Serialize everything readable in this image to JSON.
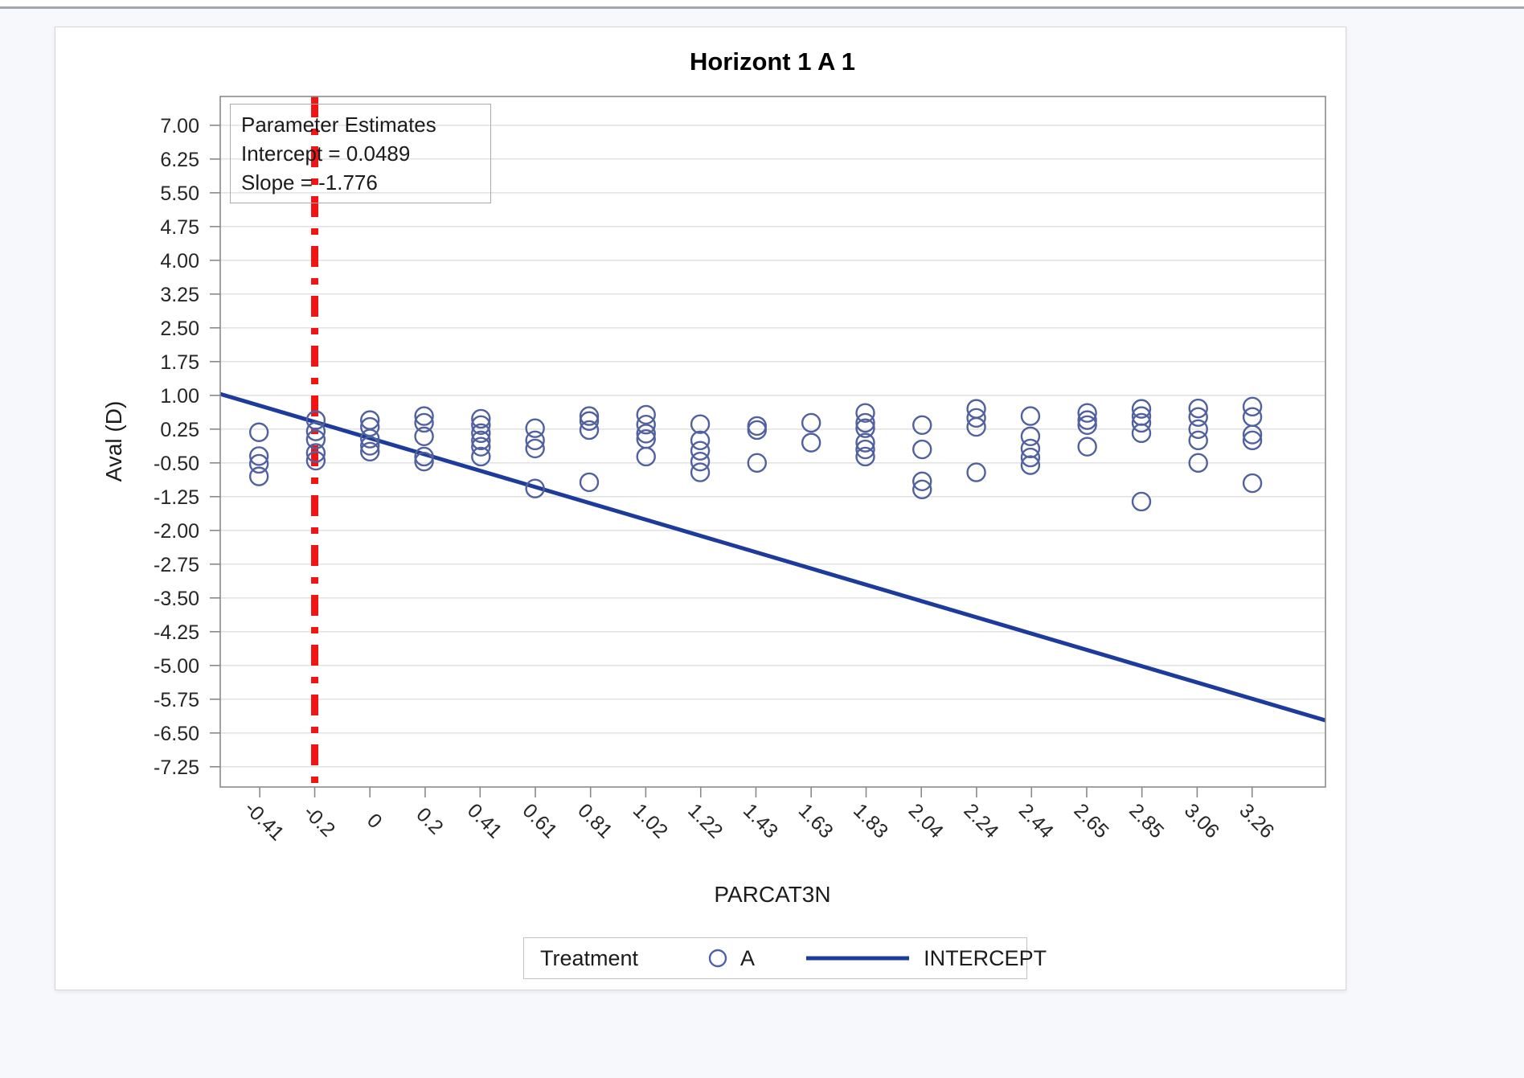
{
  "page": {
    "background": "#f6f8fc",
    "panel_background": "#ffffff"
  },
  "chart_data": {
    "type": "scatter",
    "title": "Horizont 1 A 1",
    "xlabel": "PARCAT3N",
    "ylabel": "Aval (D)",
    "grid": "horizontal",
    "xlim": [
      -0.553,
      3.53
    ],
    "ylim": [
      -7.7,
      7.64
    ],
    "x_ticks": {
      "labels": [
        "-0.41",
        "-0.2",
        "0",
        "0.2",
        "0.41",
        "0.61",
        "0.81",
        "1.02",
        "1.22",
        "1.43",
        "1.63",
        "1.83",
        "2.04",
        "2.24",
        "2.44",
        "2.65",
        "2.85",
        "3.06",
        "3.26"
      ],
      "values": [
        -0.407,
        -0.204,
        0,
        0.204,
        0.407,
        0.611,
        0.815,
        1.019,
        1.222,
        1.426,
        1.63,
        1.833,
        2.037,
        2.241,
        2.444,
        2.648,
        2.852,
        3.056,
        3.259
      ]
    },
    "y_ticks": {
      "labels": [
        "7.00",
        "6.25",
        "5.50",
        "4.75",
        "4.00",
        "3.25",
        "2.50",
        "1.75",
        "1.00",
        "0.25",
        "-0.50",
        "-1.25",
        "-2.00",
        "-2.75",
        "-3.50",
        "-4.25",
        "-5.00",
        "-5.75",
        "-6.50",
        "-7.25"
      ]
    },
    "inset": {
      "lines": [
        "Parameter Estimates",
        "Intercept = 0.0489",
        "Slope = -1.776"
      ]
    },
    "parameters": {
      "intercept": 0.0489,
      "slope": -1.776
    },
    "reference_line": {
      "x": -0.204,
      "color": "#f01414",
      "style": "dash-dot"
    },
    "regression": {
      "name": "INTERCEPT",
      "color": "#1d3b9b"
    },
    "series": [
      {
        "name": "A",
        "marker": "circle",
        "color": "#51609f",
        "points": [
          [
            -0.41,
            0.18
          ],
          [
            -0.41,
            -0.35
          ],
          [
            -0.41,
            -0.52
          ],
          [
            -0.41,
            -0.8
          ],
          [
            -0.2,
            0.45
          ],
          [
            -0.2,
            0.2
          ],
          [
            -0.2,
            0.02
          ],
          [
            -0.2,
            -0.28
          ],
          [
            -0.2,
            -0.45
          ],
          [
            0,
            0.45
          ],
          [
            0,
            0.3
          ],
          [
            0,
            0.04
          ],
          [
            0,
            -0.12
          ],
          [
            0,
            -0.25
          ],
          [
            0.2,
            0.54
          ],
          [
            0.2,
            0.39
          ],
          [
            0.2,
            0.09
          ],
          [
            0.2,
            -0.36
          ],
          [
            0.2,
            -0.47
          ],
          [
            0.41,
            0.48
          ],
          [
            0.41,
            0.34
          ],
          [
            0.41,
            0.16
          ],
          [
            0.41,
            0
          ],
          [
            0.41,
            -0.14
          ],
          [
            0.41,
            -0.36
          ],
          [
            0.61,
            0.27
          ],
          [
            0.61,
            0
          ],
          [
            0.61,
            -0.18
          ],
          [
            0.61,
            -1.07
          ],
          [
            0.81,
            0.54
          ],
          [
            0.81,
            0.43
          ],
          [
            0.81,
            0.23
          ],
          [
            0.81,
            -0.93
          ],
          [
            1.02,
            0.57
          ],
          [
            1.02,
            0.35
          ],
          [
            1.02,
            0.15
          ],
          [
            1.02,
            0.03
          ],
          [
            1.02,
            -0.36
          ],
          [
            1.22,
            0.36
          ],
          [
            1.22,
            0
          ],
          [
            1.22,
            -0.23
          ],
          [
            1.22,
            -0.47
          ],
          [
            1.22,
            -0.71
          ],
          [
            1.43,
            0.32
          ],
          [
            1.43,
            0.23
          ],
          [
            1.43,
            -0.5
          ],
          [
            1.63,
            0.39
          ],
          [
            1.63,
            -0.05
          ],
          [
            1.83,
            0.61
          ],
          [
            1.83,
            0.39
          ],
          [
            1.83,
            0.27
          ],
          [
            1.83,
            -0.05
          ],
          [
            1.83,
            -0.2
          ],
          [
            1.83,
            -0.36
          ],
          [
            2.04,
            0.34
          ],
          [
            2.04,
            -0.2
          ],
          [
            2.04,
            -0.91
          ],
          [
            2.04,
            -1.09
          ],
          [
            2.24,
            0.7
          ],
          [
            2.24,
            0.5
          ],
          [
            2.24,
            0.3
          ],
          [
            2.24,
            -0.71
          ],
          [
            2.44,
            0.54
          ],
          [
            2.44,
            0.09
          ],
          [
            2.44,
            -0.18
          ],
          [
            2.44,
            -0.38
          ],
          [
            2.44,
            -0.55
          ],
          [
            2.65,
            0.61
          ],
          [
            2.65,
            0.45
          ],
          [
            2.65,
            0.34
          ],
          [
            2.65,
            -0.14
          ],
          [
            2.85,
            0.7
          ],
          [
            2.85,
            0.54
          ],
          [
            2.85,
            0.39
          ],
          [
            2.85,
            0.16
          ],
          [
            2.85,
            -1.36
          ],
          [
            3.06,
            0.71
          ],
          [
            3.06,
            0.52
          ],
          [
            3.06,
            0.25
          ],
          [
            3.06,
            0
          ],
          [
            3.06,
            -0.5
          ],
          [
            3.26,
            0.75
          ],
          [
            3.26,
            0.52
          ],
          [
            3.26,
            0.13
          ],
          [
            3.26,
            0
          ],
          [
            3.26,
            -0.95
          ]
        ]
      }
    ],
    "legend": {
      "title": "Treatment",
      "position": "bottom",
      "entries": [
        "A",
        "INTERCEPT"
      ]
    }
  }
}
